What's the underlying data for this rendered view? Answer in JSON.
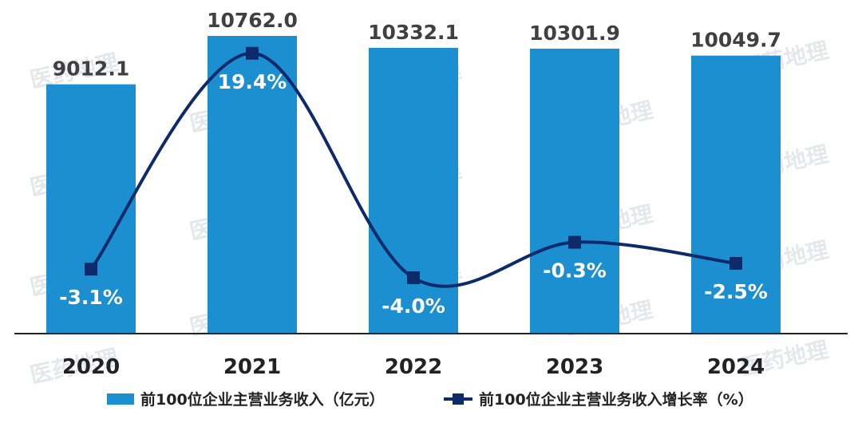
{
  "watermark_text": "医药地理",
  "chart_data": {
    "type": "bar",
    "categories": [
      "2020",
      "2021",
      "2022",
      "2023",
      "2024"
    ],
    "series": [
      {
        "name": "前100位企业主营业务收入（亿元）",
        "type": "bar",
        "values": [
          9012.1,
          10762.0,
          10332.1,
          10301.9,
          10049.7
        ],
        "labels": [
          "9012.1",
          "10762.0",
          "10332.1",
          "10301.9",
          "10049.7"
        ],
        "color": "#1b8fd0"
      },
      {
        "name": "前100位企业主营业务收入增长率（%）",
        "type": "line",
        "values": [
          -3.1,
          19.4,
          -4.0,
          -0.3,
          -2.5
        ],
        "labels": [
          "-3.1%",
          "19.4%",
          "-4.0%",
          "-0.3%",
          "-2.5%"
        ],
        "color": "#0d2b6b"
      }
    ],
    "legend_position": "bottom",
    "grid": false
  }
}
